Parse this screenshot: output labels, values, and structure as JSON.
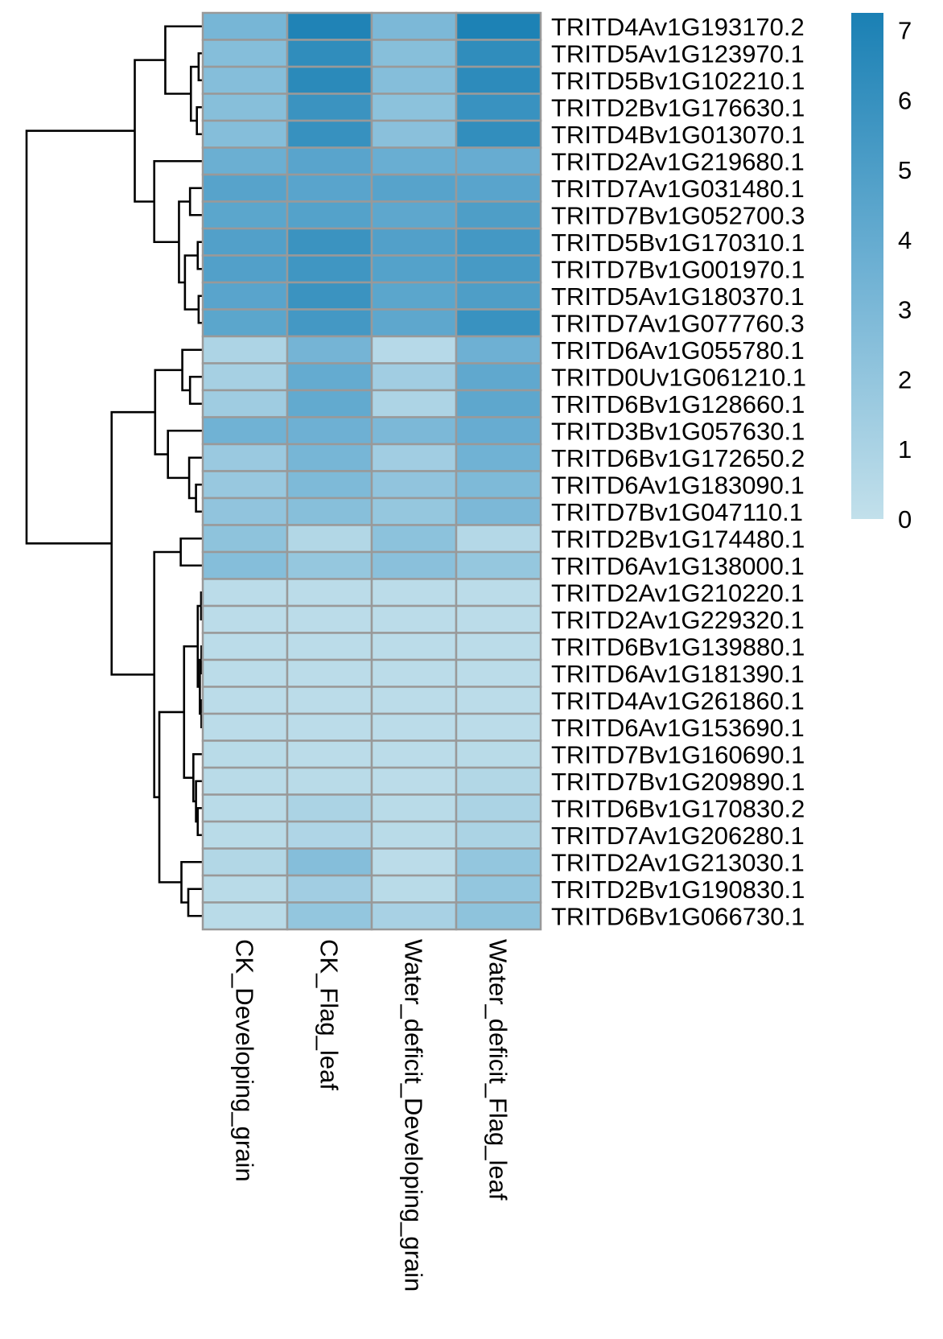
{
  "chart_data": {
    "type": "heatmap",
    "title": "",
    "columns": [
      "CK_Developing_grain",
      "CK_Flag_leaf",
      "Water_deficit_Developing_grain",
      "Water_deficit_Flag_leaf"
    ],
    "rows": [
      "TRITD4Av1G193170.2",
      "TRITD5Av1G123970.1",
      "TRITD5Bv1G102210.1",
      "TRITD2Bv1G176630.1",
      "TRITD4Bv1G013070.1",
      "TRITD2Av1G219680.1",
      "TRITD7Av1G031480.1",
      "TRITD7Bv1G052700.3",
      "TRITD5Bv1G170310.1",
      "TRITD7Bv1G001970.1",
      "TRITD5Av1G180370.1",
      "TRITD7Av1G077760.3",
      "TRITD6Av1G055780.1",
      "TRITD0Uv1G061210.1",
      "TRITD6Bv1G128660.1",
      "TRITD3Bv1G057630.1",
      "TRITD6Bv1G172650.2",
      "TRITD6Av1G183090.1",
      "TRITD7Bv1G047110.1",
      "TRITD2Bv1G174480.1",
      "TRITD6Av1G138000.1",
      "TRITD2Av1G210220.1",
      "TRITD2Av1G229320.1",
      "TRITD6Bv1G139880.1",
      "TRITD6Av1G181390.1",
      "TRITD4Av1G261860.1",
      "TRITD6Av1G153690.1",
      "TRITD7Bv1G160690.1",
      "TRITD7Bv1G209890.1",
      "TRITD6Bv1G170830.2",
      "TRITD7Av1G206280.1",
      "TRITD2Av1G213030.1",
      "TRITD2Bv1G190830.1",
      "TRITD6Bv1G066730.1"
    ],
    "values": [
      [
        3.2,
        7.0,
        3.0,
        7.1
      ],
      [
        2.6,
        6.3,
        2.5,
        6.3
      ],
      [
        2.6,
        6.5,
        2.6,
        6.4
      ],
      [
        2.5,
        5.8,
        2.3,
        5.9
      ],
      [
        2.6,
        6.0,
        2.4,
        6.2
      ],
      [
        3.7,
        4.5,
        3.8,
        3.9
      ],
      [
        4.6,
        4.5,
        4.6,
        4.5
      ],
      [
        4.4,
        4.7,
        4.3,
        5.0
      ],
      [
        4.8,
        5.8,
        4.8,
        5.4
      ],
      [
        4.8,
        5.6,
        4.7,
        5.3
      ],
      [
        4.5,
        5.8,
        4.4,
        5.0
      ],
      [
        4.4,
        5.4,
        4.3,
        5.9
      ],
      [
        0.9,
        3.3,
        0.5,
        3.6
      ],
      [
        1.2,
        4.0,
        1.4,
        4.2
      ],
      [
        1.5,
        4.1,
        0.9,
        4.3
      ],
      [
        3.5,
        3.6,
        3.0,
        3.9
      ],
      [
        1.7,
        3.2,
        1.4,
        3.5
      ],
      [
        1.8,
        2.9,
        2.1,
        2.9
      ],
      [
        2.1,
        2.5,
        1.9,
        3.0
      ],
      [
        2.2,
        0.7,
        2.3,
        0.6
      ],
      [
        2.6,
        1.9,
        2.4,
        1.9
      ],
      [
        0.3,
        0.3,
        0.3,
        0.3
      ],
      [
        0.3,
        0.3,
        0.3,
        0.3
      ],
      [
        0.3,
        0.3,
        0.3,
        0.3
      ],
      [
        0.3,
        0.3,
        0.3,
        0.3
      ],
      [
        0.3,
        0.3,
        0.3,
        0.3
      ],
      [
        0.3,
        0.3,
        0.3,
        0.3
      ],
      [
        0.4,
        0.3,
        0.3,
        0.4
      ],
      [
        0.4,
        0.4,
        0.3,
        0.7
      ],
      [
        0.4,
        1.0,
        0.4,
        1.0
      ],
      [
        0.4,
        0.8,
        0.4,
        1.0
      ],
      [
        0.7,
        2.6,
        0.3,
        2.0
      ],
      [
        0.4,
        1.4,
        0.4,
        2.0
      ],
      [
        0.4,
        2.0,
        1.1,
        2.2
      ]
    ],
    "colorbar": {
      "min": 0,
      "max": 7.25,
      "ticks": [
        "0",
        "1",
        "2",
        "3",
        "4",
        "5",
        "6",
        "7"
      ],
      "colors": [
        "#c2e0eb",
        "#6db0d3",
        "#1a80b4"
      ]
    },
    "row_dendrogram": {
      "h": 10,
      "c": [
        {
          "h": 3.83,
          "c": [
            {
              "h": 2.09,
              "c": [
                0,
                {
                  "h": 0.63,
                  "c": [
                    {
                      "h": 0.19,
                      "c": [
                        1,
                        2
                      ]
                    },
                    {
                      "h": 0.29,
                      "c": [
                        3,
                        4
                      ]
                    }
                  ]
                }
              ]
            },
            {
              "h": 2.72,
              "c": [
                5,
                {
                  "h": 1.31,
                  "c": [
                    {
                      "h": 0.68,
                      "c": [
                        6,
                        7
                      ]
                    },
                    {
                      "h": 0.97,
                      "c": [
                        {
                          "h": 0.24,
                          "c": [
                            8,
                            9
                          ]
                        },
                        {
                          "h": 0.19,
                          "c": [
                            10,
                            11
                          ]
                        }
                      ]
                    }
                  ]
                }
              ]
            }
          ]
        },
        {
          "h": 5.15,
          "c": [
            {
              "h": 2.67,
              "c": [
                {
                  "h": 1.12,
                  "c": [
                    12,
                    {
                      "h": 0.68,
                      "c": [
                        13,
                        14
                      ]
                    }
                  ]
                },
                {
                  "h": 1.94,
                  "c": [
                    15,
                    {
                      "h": 0.73,
                      "c": [
                        16,
                        {
                          "h": 0.34,
                          "c": [
                            17,
                            18
                          ]
                        }
                      ]
                    }
                  ]
                }
              ]
            },
            {
              "h": 2.72,
              "c": [
                {
                  "h": 1.21,
                  "c": [
                    19,
                    20
                  ]
                },
                {
                  "h": 2.43,
                  "c": [
                    {
                      "h": 1.02,
                      "c": [
                        {
                          "h": 0.24,
                          "c": [
                            {
                              "h": 0.05,
                              "c": [
                                21,
                                22
                              ]
                            },
                            {
                              "h": 0.12,
                              "c": [
                                {
                                  "h": 0.03,
                                  "c": [
                                    23,
                                    24
                                  ]
                                },
                                {
                                  "h": 0.03,
                                  "c": [
                                    25,
                                    26
                                  ]
                                }
                              ]
                            }
                          ]
                        },
                        {
                          "h": 0.49,
                          "c": [
                            27,
                            {
                              "h": 0.34,
                              "c": [
                                28,
                                {
                                  "h": 0.24,
                                  "c": [
                                    29,
                                    30
                                  ]
                                }
                              ]
                            }
                          ]
                        }
                      ]
                    },
                    {
                      "h": 1.17,
                      "c": [
                        31,
                        {
                          "h": 0.78,
                          "c": [
                            32,
                            33
                          ]
                        }
                      ]
                    }
                  ]
                }
              ]
            }
          ]
        }
      ]
    }
  }
}
